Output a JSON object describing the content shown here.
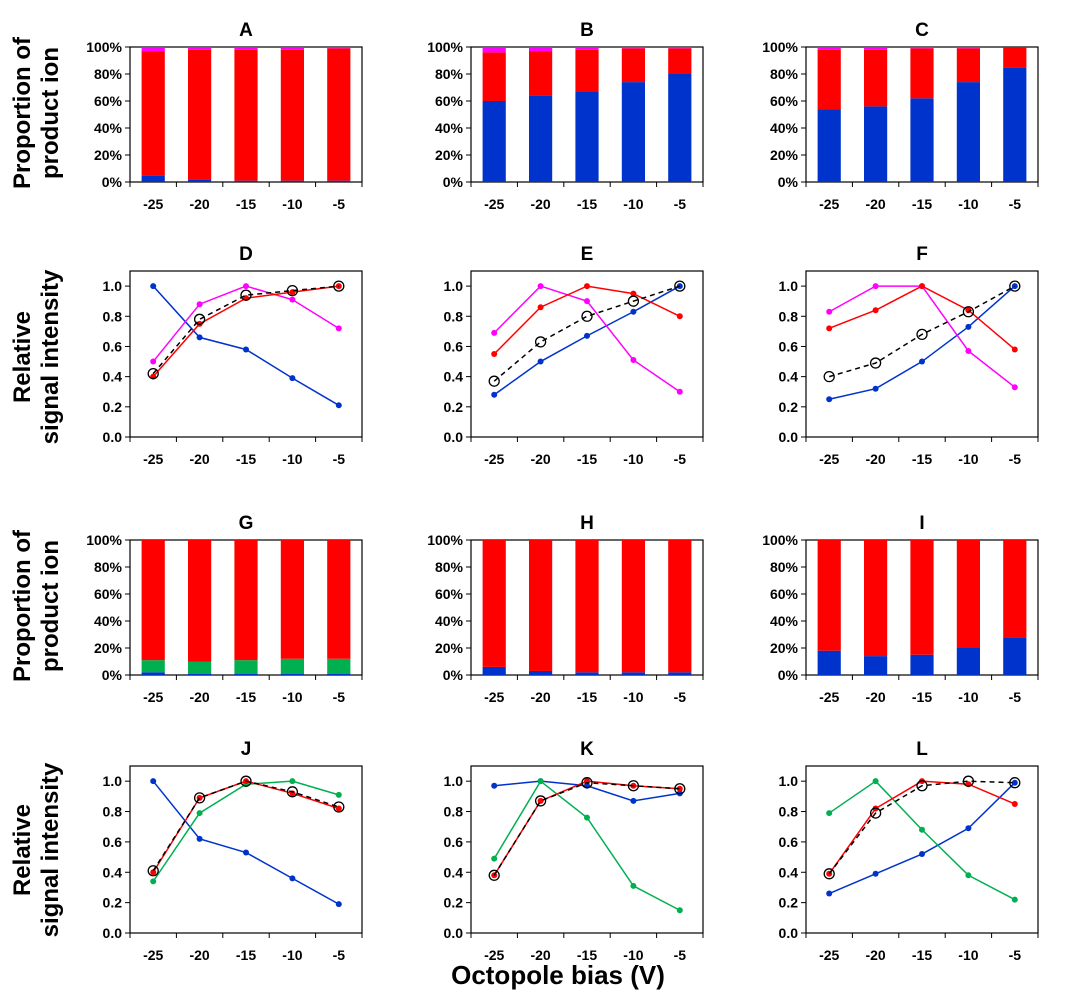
{
  "colors": {
    "blue": "#0033cc",
    "red": "#ff0000",
    "magenta": "#ff00ff",
    "green": "#00b050",
    "black": "#000000"
  },
  "row_labels": {
    "proportion_line1": "Proportion of",
    "proportion_line2": "product ion",
    "intensity_line1": "Relative",
    "intensity_line2": "signal intensity"
  },
  "x_axis_label": "Octopole bias (V)",
  "chart_data": [
    {
      "panel": "A",
      "type": "bar",
      "stacked": true,
      "categories": [
        "-25",
        "-20",
        "-15",
        "-10",
        "-5"
      ],
      "yticks": [
        "0%",
        "20%",
        "40%",
        "60%",
        "80%",
        "100%"
      ],
      "ylim": [
        0,
        100
      ],
      "series": [
        {
          "name": "blue",
          "color": "#0033cc",
          "values": [
            5,
            2,
            1,
            1,
            1
          ]
        },
        {
          "name": "red",
          "color": "#ff0000",
          "values": [
            92,
            96,
            97,
            97,
            98
          ]
        },
        {
          "name": "magenta",
          "color": "#ff00ff",
          "values": [
            3,
            2,
            2,
            2,
            1
          ]
        }
      ]
    },
    {
      "panel": "B",
      "type": "bar",
      "stacked": true,
      "categories": [
        "-25",
        "-20",
        "-15",
        "-10",
        "-5"
      ],
      "yticks": [
        "0%",
        "20%",
        "40%",
        "60%",
        "80%",
        "100%"
      ],
      "ylim": [
        0,
        100
      ],
      "series": [
        {
          "name": "blue",
          "color": "#0033cc",
          "values": [
            60,
            64,
            67,
            74,
            80
          ]
        },
        {
          "name": "red",
          "color": "#ff0000",
          "values": [
            36,
            33,
            31,
            25,
            19
          ]
        },
        {
          "name": "magenta",
          "color": "#ff00ff",
          "values": [
            4,
            3,
            2,
            1,
            1
          ]
        }
      ]
    },
    {
      "panel": "C",
      "type": "bar",
      "stacked": true,
      "categories": [
        "-25",
        "-20",
        "-15",
        "-10",
        "-5"
      ],
      "yticks": [
        "0%",
        "20%",
        "40%",
        "60%",
        "80%",
        "100%"
      ],
      "ylim": [
        0,
        100
      ],
      "series": [
        {
          "name": "blue",
          "color": "#0033cc",
          "values": [
            54,
            56,
            62,
            74,
            85
          ]
        },
        {
          "name": "red",
          "color": "#ff0000",
          "values": [
            44,
            42,
            37,
            25,
            15
          ]
        },
        {
          "name": "magenta",
          "color": "#ff00ff",
          "values": [
            2,
            2,
            1,
            1,
            0
          ]
        }
      ]
    },
    {
      "panel": "D",
      "type": "line",
      "categories": [
        "-25",
        "-20",
        "-15",
        "-10",
        "-5"
      ],
      "yticks": [
        "0.0",
        "0.2",
        "0.4",
        "0.6",
        "0.8",
        "1.0"
      ],
      "ylim": [
        0,
        1.1
      ],
      "series": [
        {
          "name": "blue",
          "color": "#0033cc",
          "values": [
            1.0,
            0.66,
            0.58,
            0.39,
            0.21
          ]
        },
        {
          "name": "magenta",
          "color": "#ff00ff",
          "values": [
            0.5,
            0.88,
            1.0,
            0.91,
            0.72
          ]
        },
        {
          "name": "red",
          "color": "#ff0000",
          "values": [
            0.4,
            0.75,
            0.92,
            0.96,
            1.0
          ]
        },
        {
          "name": "total",
          "color": "#000000",
          "dashed": true,
          "open_markers": true,
          "values": [
            0.42,
            0.78,
            0.94,
            0.97,
            1.0
          ]
        }
      ]
    },
    {
      "panel": "E",
      "type": "line",
      "categories": [
        "-25",
        "-20",
        "-15",
        "-10",
        "-5"
      ],
      "yticks": [
        "0.0",
        "0.2",
        "0.4",
        "0.6",
        "0.8",
        "1.0"
      ],
      "ylim": [
        0,
        1.1
      ],
      "series": [
        {
          "name": "blue",
          "color": "#0033cc",
          "values": [
            0.28,
            0.5,
            0.67,
            0.83,
            1.0
          ]
        },
        {
          "name": "magenta",
          "color": "#ff00ff",
          "values": [
            0.69,
            1.0,
            0.9,
            0.51,
            0.3
          ]
        },
        {
          "name": "red",
          "color": "#ff0000",
          "values": [
            0.55,
            0.86,
            1.0,
            0.95,
            0.8
          ]
        },
        {
          "name": "total",
          "color": "#000000",
          "dashed": true,
          "open_markers": true,
          "values": [
            0.37,
            0.63,
            0.8,
            0.9,
            1.0
          ]
        }
      ]
    },
    {
      "panel": "F",
      "type": "line",
      "categories": [
        "-25",
        "-20",
        "-15",
        "-10",
        "-5"
      ],
      "yticks": [
        "0.0",
        "0.2",
        "0.4",
        "0.6",
        "0.8",
        "1.0"
      ],
      "ylim": [
        0,
        1.1
      ],
      "series": [
        {
          "name": "blue",
          "color": "#0033cc",
          "values": [
            0.25,
            0.32,
            0.5,
            0.73,
            1.0
          ]
        },
        {
          "name": "magenta",
          "color": "#ff00ff",
          "values": [
            0.83,
            1.0,
            1.0,
            0.57,
            0.33
          ]
        },
        {
          "name": "red",
          "color": "#ff0000",
          "values": [
            0.72,
            0.84,
            1.0,
            0.84,
            0.58
          ]
        },
        {
          "name": "total",
          "color": "#000000",
          "dashed": true,
          "open_markers": true,
          "values": [
            0.4,
            0.49,
            0.68,
            0.83,
            1.0
          ]
        }
      ]
    },
    {
      "panel": "G",
      "type": "bar",
      "stacked": true,
      "categories": [
        "-25",
        "-20",
        "-15",
        "-10",
        "-5"
      ],
      "yticks": [
        "0%",
        "20%",
        "40%",
        "60%",
        "80%",
        "100%"
      ],
      "ylim": [
        0,
        100
      ],
      "series": [
        {
          "name": "blue",
          "color": "#0033cc",
          "values": [
            2,
            1,
            1,
            1,
            1
          ]
        },
        {
          "name": "green",
          "color": "#00b050",
          "values": [
            9,
            9,
            10,
            11,
            11
          ]
        },
        {
          "name": "red",
          "color": "#ff0000",
          "values": [
            89,
            90,
            89,
            88,
            88
          ]
        }
      ]
    },
    {
      "panel": "H",
      "type": "bar",
      "stacked": true,
      "categories": [
        "-25",
        "-20",
        "-15",
        "-10",
        "-5"
      ],
      "yticks": [
        "0%",
        "20%",
        "40%",
        "60%",
        "80%",
        "100%"
      ],
      "ylim": [
        0,
        100
      ],
      "series": [
        {
          "name": "blue",
          "color": "#0033cc",
          "values": [
            6,
            3,
            2,
            2,
            2
          ]
        },
        {
          "name": "green",
          "color": "#00b050",
          "values": [
            0,
            0,
            0,
            0,
            0
          ]
        },
        {
          "name": "red",
          "color": "#ff0000",
          "values": [
            94,
            97,
            98,
            98,
            98
          ]
        }
      ]
    },
    {
      "panel": "I",
      "type": "bar",
      "stacked": true,
      "categories": [
        "-25",
        "-20",
        "-15",
        "-10",
        "-5"
      ],
      "yticks": [
        "0%",
        "20%",
        "40%",
        "60%",
        "80%",
        "100%"
      ],
      "ylim": [
        0,
        100
      ],
      "series": [
        {
          "name": "blue",
          "color": "#0033cc",
          "values": [
            18,
            14,
            15,
            20,
            28
          ]
        },
        {
          "name": "green",
          "color": "#00b050",
          "values": [
            0,
            0,
            0,
            0,
            0
          ]
        },
        {
          "name": "red",
          "color": "#ff0000",
          "values": [
            82,
            86,
            85,
            80,
            72
          ]
        }
      ]
    },
    {
      "panel": "J",
      "type": "line",
      "categories": [
        "-25",
        "-20",
        "-15",
        "-10",
        "-5"
      ],
      "yticks": [
        "0.0",
        "0.2",
        "0.4",
        "0.6",
        "0.8",
        "1.0"
      ],
      "ylim": [
        0,
        1.1
      ],
      "series": [
        {
          "name": "blue",
          "color": "#0033cc",
          "values": [
            1.0,
            0.62,
            0.53,
            0.36,
            0.19
          ]
        },
        {
          "name": "green",
          "color": "#00b050",
          "values": [
            0.34,
            0.79,
            0.98,
            1.0,
            0.91
          ]
        },
        {
          "name": "red",
          "color": "#ff0000",
          "values": [
            0.4,
            0.89,
            1.0,
            0.92,
            0.82
          ]
        },
        {
          "name": "total",
          "color": "#000000",
          "dashed": true,
          "open_markers": true,
          "values": [
            0.41,
            0.89,
            1.0,
            0.93,
            0.83
          ]
        }
      ]
    },
    {
      "panel": "K",
      "type": "line",
      "categories": [
        "-25",
        "-20",
        "-15",
        "-10",
        "-5"
      ],
      "yticks": [
        "0.0",
        "0.2",
        "0.4",
        "0.6",
        "0.8",
        "1.0"
      ],
      "ylim": [
        0,
        1.1
      ],
      "series": [
        {
          "name": "blue",
          "color": "#0033cc",
          "values": [
            0.97,
            1.0,
            0.97,
            0.87,
            0.92
          ]
        },
        {
          "name": "green",
          "color": "#00b050",
          "values": [
            0.49,
            1.0,
            0.76,
            0.31,
            0.15
          ]
        },
        {
          "name": "red",
          "color": "#ff0000",
          "values": [
            0.38,
            0.87,
            1.0,
            0.97,
            0.95
          ]
        },
        {
          "name": "total",
          "color": "#000000",
          "dashed": true,
          "open_markers": true,
          "values": [
            0.38,
            0.87,
            0.99,
            0.97,
            0.95
          ]
        }
      ]
    },
    {
      "panel": "L",
      "type": "line",
      "categories": [
        "-25",
        "-20",
        "-15",
        "-10",
        "-5"
      ],
      "yticks": [
        "0.0",
        "0.2",
        "0.4",
        "0.6",
        "0.8",
        "1.0"
      ],
      "ylim": [
        0,
        1.1
      ],
      "series": [
        {
          "name": "blue",
          "color": "#0033cc",
          "values": [
            0.26,
            0.39,
            0.52,
            0.69,
            0.99
          ]
        },
        {
          "name": "green",
          "color": "#00b050",
          "values": [
            0.79,
            1.0,
            0.68,
            0.38,
            0.22
          ]
        },
        {
          "name": "red",
          "color": "#ff0000",
          "values": [
            0.39,
            0.82,
            1.0,
            0.98,
            0.85
          ]
        },
        {
          "name": "total",
          "color": "#000000",
          "dashed": true,
          "open_markers": true,
          "values": [
            0.39,
            0.79,
            0.97,
            1.0,
            0.99
          ]
        }
      ]
    }
  ]
}
